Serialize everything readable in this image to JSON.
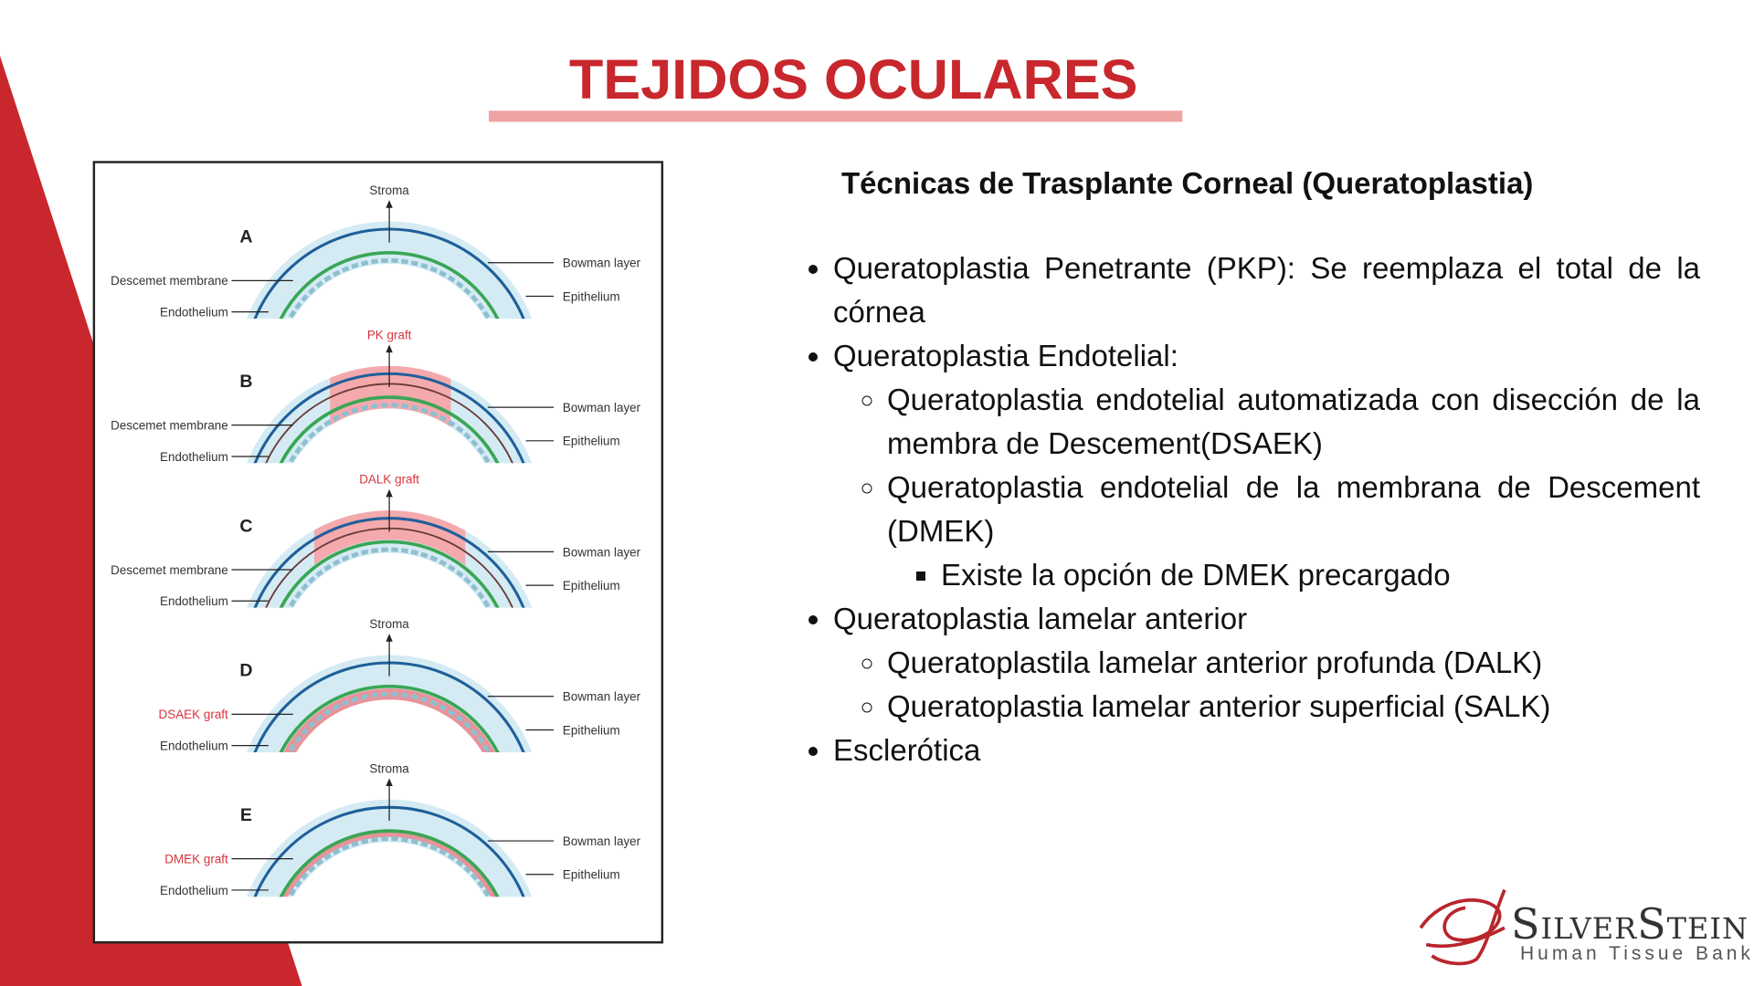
{
  "title": "TEJIDOS OCULARES",
  "figure": {
    "panels": [
      {
        "letter": "A",
        "top_label": "Stroma",
        "left_labels": [
          "Descemet membrane",
          "Endothelium"
        ],
        "right_labels": [
          "Bowman layer",
          "Epithelium"
        ]
      },
      {
        "letter": "B",
        "top_label": "PK graft",
        "left_labels": [
          "Descemet membrane",
          "Endothelium"
        ],
        "right_labels": [
          "Bowman layer",
          "Epithelium"
        ]
      },
      {
        "letter": "C",
        "top_label": "DALK graft",
        "left_labels": [
          "Descemet membrane",
          "Endothelium"
        ],
        "right_labels": [
          "Bowman layer",
          "Epithelium"
        ]
      },
      {
        "letter": "D",
        "top_label": "Stroma",
        "left_labels": [
          "DSAEK graft",
          "Endothelium"
        ],
        "right_labels": [
          "Bowman layer",
          "Epithelium"
        ]
      },
      {
        "letter": "E",
        "top_label": "Stroma",
        "left_labels": [
          "DMEK graft",
          "Endothelium"
        ],
        "right_labels": [
          "Bowman layer",
          "Epithelium"
        ]
      }
    ]
  },
  "content": {
    "heading": "Técnicas de Trasplante Corneal (Queratoplastia)",
    "items": [
      {
        "text": "Queratoplastia Penetrante (PKP): Se reemplaza el total de la córnea"
      },
      {
        "text": "Queratoplastia Endotelial:",
        "children": [
          {
            "text": "Queratoplastia endotelial automatizada con disección de la membra de Descement(DSAEK)"
          },
          {
            "text": "Queratoplastia endotelial de la membrana de Descement (DMEK)",
            "children": [
              {
                "text": "Existe la opción de DMEK precargado"
              }
            ]
          }
        ]
      },
      {
        "text": "Queratoplastia lamelar anterior",
        "children": [
          {
            "text": "Queratoplastila lamelar anterior profunda (DALK)"
          },
          {
            "text": "Queratoplastia lamelar anterior superficial (SALK)"
          }
        ]
      },
      {
        "text": "Esclerótica"
      }
    ]
  },
  "logo": {
    "name": "SilverStein",
    "tagline": "Human Tissue Bank"
  }
}
